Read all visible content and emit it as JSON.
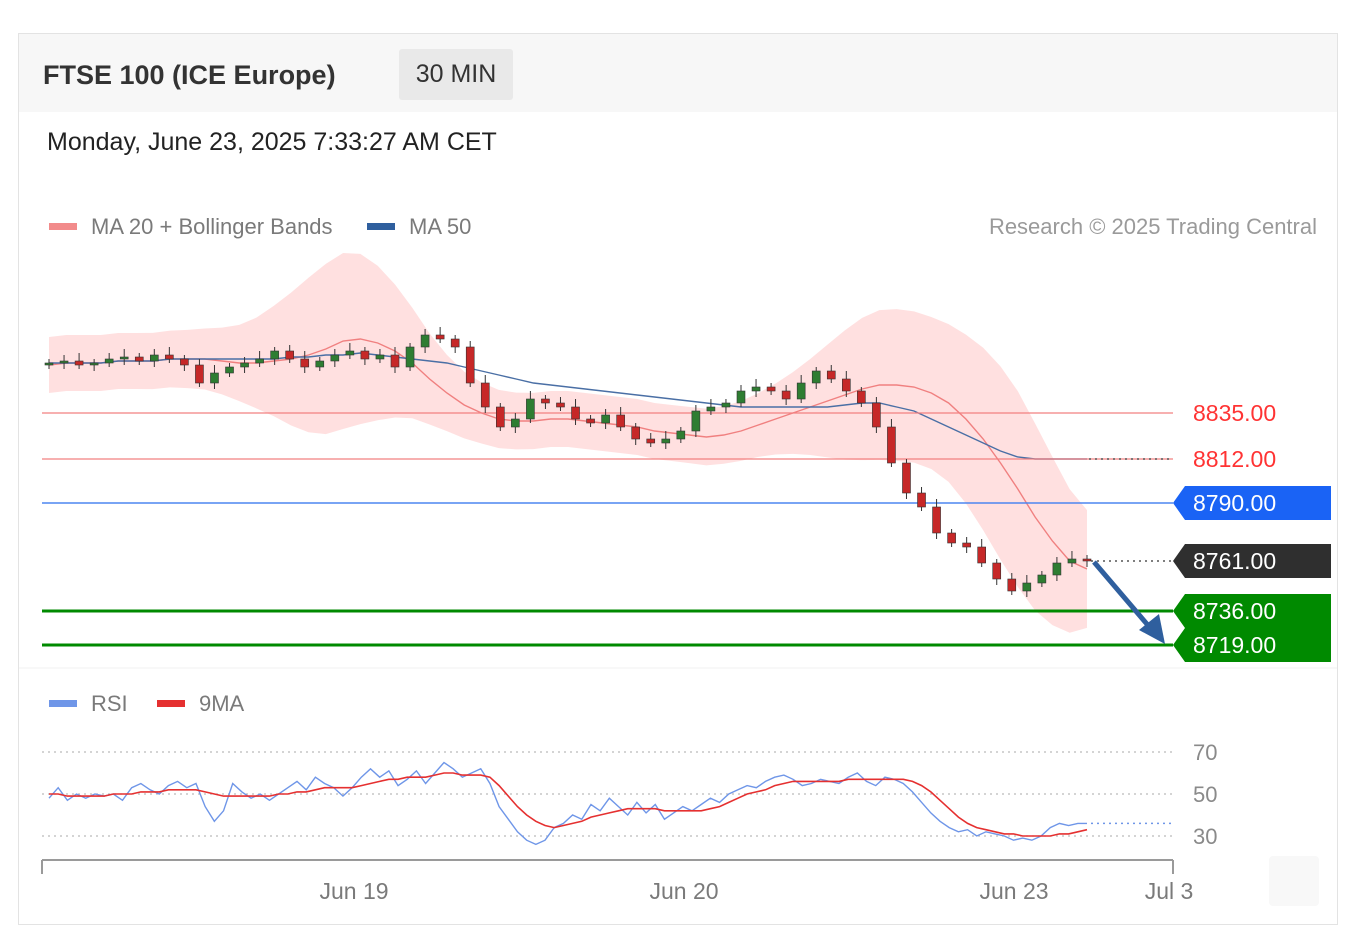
{
  "header": {
    "title": "FTSE 100 (ICE Europe)",
    "interval": "30 MIN",
    "timestamp": "Monday, June 23, 2025 7:33:27 AM CET"
  },
  "legend": {
    "ma20": "MA 20 + Bollinger Bands",
    "ma50": "MA 50",
    "copyright": "Research © 2025 Trading Central",
    "rsi": "RSI",
    "rsi_ma": "9MA"
  },
  "colors": {
    "resistance": "#ff3333",
    "pivot": "#1a63f5",
    "support": "#008a00",
    "last": "#2f2f2f",
    "bull_candle": "#2e7d32",
    "bear_candle": "#c62828",
    "band": "#ffd6d6",
    "ma20": "#f08080",
    "ma50": "#4a6fa5",
    "rsi": "#6f96e8",
    "rsi_ma": "#e53030",
    "arrow": "#2f5f9e"
  },
  "levels": [
    {
      "label": "8835.00",
      "value": 8835,
      "type": "resistance"
    },
    {
      "label": "8812.00",
      "value": 8812,
      "type": "resistance"
    },
    {
      "label": "8790.00",
      "value": 8790,
      "type": "pivot"
    },
    {
      "label": "8761.00",
      "value": 8761,
      "type": "last"
    },
    {
      "label": "8736.00",
      "value": 8736,
      "type": "support"
    },
    {
      "label": "8719.00",
      "value": 8719,
      "type": "support"
    }
  ],
  "rsi_levels": [
    "70",
    "50",
    "30"
  ],
  "chart_data": {
    "type": "candlestick",
    "instrument": "FTSE 100 (ICE Europe)",
    "interval": "30 MIN",
    "x_ticks": [
      "Jun 19",
      "Jun 20",
      "Jun 23",
      "Jul 3"
    ],
    "ylim": [
      8712,
      8872
    ],
    "series": [
      {
        "name": "MA 20 + Bollinger Bands",
        "ma": [
          8859,
          8860,
          8860,
          8860,
          8861,
          8861,
          8861,
          8862,
          8862,
          8862,
          8861,
          8860,
          8860,
          8861,
          8862,
          8864,
          8867,
          8871,
          8872,
          8870,
          8866,
          8860,
          8852,
          8845,
          8839,
          8835,
          8832,
          8831,
          8831,
          8832,
          8832,
          8831,
          8830,
          8829,
          8828,
          8826,
          8825,
          8824,
          8823,
          8824,
          8826,
          8829,
          8832,
          8835,
          8838,
          8841,
          8844,
          8847,
          8849,
          8849,
          8848,
          8845,
          8840,
          8832,
          8822,
          8810,
          8797,
          8783,
          8771,
          8761,
          8757
        ]
      },
      {
        "name": "MA 50",
        "ma": [
          8860,
          8860,
          8860,
          8860,
          8861,
          8861,
          8861,
          8862,
          8862,
          8862,
          8862,
          8862,
          8862,
          8862,
          8863,
          8863,
          8864,
          8864,
          8865,
          8864,
          8863,
          8862,
          8861,
          8860,
          8858,
          8856,
          8854,
          8852,
          8850,
          8849,
          8848,
          8847,
          8846,
          8845,
          8844,
          8843,
          8842,
          8841,
          8840,
          8839,
          8838,
          8838,
          8838,
          8838,
          8838,
          8838,
          8839,
          8840,
          8840,
          8838,
          8836,
          8832,
          8828,
          8824,
          8820,
          8816,
          8813,
          8812,
          8812,
          8812,
          8812
        ]
      },
      {
        "name": "Close",
        "values": [
          8860,
          8861,
          8859,
          8860,
          8862,
          8863,
          8861,
          8864,
          8862,
          8859,
          8850,
          8855,
          8858,
          8860,
          8862,
          8866,
          8862,
          8858,
          8861,
          8864,
          8866,
          8862,
          8864,
          8858,
          8868,
          8874,
          8872,
          8868,
          8850,
          8838,
          8828,
          8832,
          8842,
          8840,
          8838,
          8832,
          8830,
          8834,
          8828,
          8822,
          8820,
          8822,
          8826,
          8836,
          8838,
          8840,
          8846,
          8848,
          8846,
          8842,
          8850,
          8856,
          8852,
          8846,
          8840,
          8828,
          8810,
          8795,
          8788,
          8775,
          8770,
          8768,
          8760,
          8752,
          8746,
          8750,
          8754,
          8760,
          8762,
          8761
        ]
      }
    ],
    "rsi_panel": {
      "ylim": [
        20,
        80
      ],
      "levels": [
        70,
        50,
        30
      ],
      "series": [
        {
          "name": "RSI",
          "values": [
            48,
            53,
            47,
            50,
            48,
            50,
            49,
            50,
            47,
            53,
            55,
            52,
            50,
            54,
            56,
            53,
            55,
            44,
            37,
            42,
            55,
            51,
            48,
            50,
            47,
            50,
            53,
            56,
            52,
            58,
            55,
            53,
            49,
            53,
            58,
            62,
            58,
            61,
            54,
            57,
            61,
            55,
            60,
            65,
            62,
            58,
            60,
            62,
            55,
            44,
            38,
            32,
            28,
            26,
            28,
            34,
            36,
            40,
            38,
            45,
            42,
            48,
            44,
            40,
            46,
            41,
            45,
            38,
            41,
            44,
            42,
            45,
            48,
            46,
            50,
            52,
            54,
            53,
            56,
            58,
            59,
            57,
            54,
            55,
            57,
            56,
            55,
            58,
            60,
            56,
            54,
            58,
            57,
            55,
            51,
            46,
            41,
            37,
            34,
            32,
            33,
            30,
            32,
            31,
            30,
            28,
            29,
            28,
            30,
            34,
            36,
            35,
            36,
            36
          ]
        },
        {
          "name": "9MA",
          "values": [
            50,
            50,
            49,
            49,
            49,
            49,
            49,
            50,
            50,
            50,
            51,
            51,
            51,
            52,
            52,
            52,
            52,
            51,
            50,
            49,
            49,
            49,
            49,
            49,
            49,
            50,
            50,
            51,
            51,
            52,
            53,
            53,
            53,
            53,
            54,
            55,
            56,
            57,
            57,
            58,
            58,
            58,
            59,
            60,
            60,
            59,
            59,
            59,
            58,
            54,
            49,
            44,
            40,
            37,
            35,
            34,
            35,
            36,
            37,
            39,
            40,
            41,
            42,
            43,
            43,
            43,
            43,
            42,
            42,
            42,
            42,
            42,
            43,
            44,
            46,
            48,
            50,
            51,
            52,
            54,
            55,
            56,
            56,
            56,
            56,
            56,
            56,
            57,
            57,
            57,
            57,
            57,
            57,
            57,
            56,
            54,
            51,
            47,
            43,
            39,
            36,
            34,
            33,
            32,
            31,
            31,
            30,
            30,
            30,
            30,
            31,
            31,
            32,
            33
          ]
        }
      ]
    }
  }
}
